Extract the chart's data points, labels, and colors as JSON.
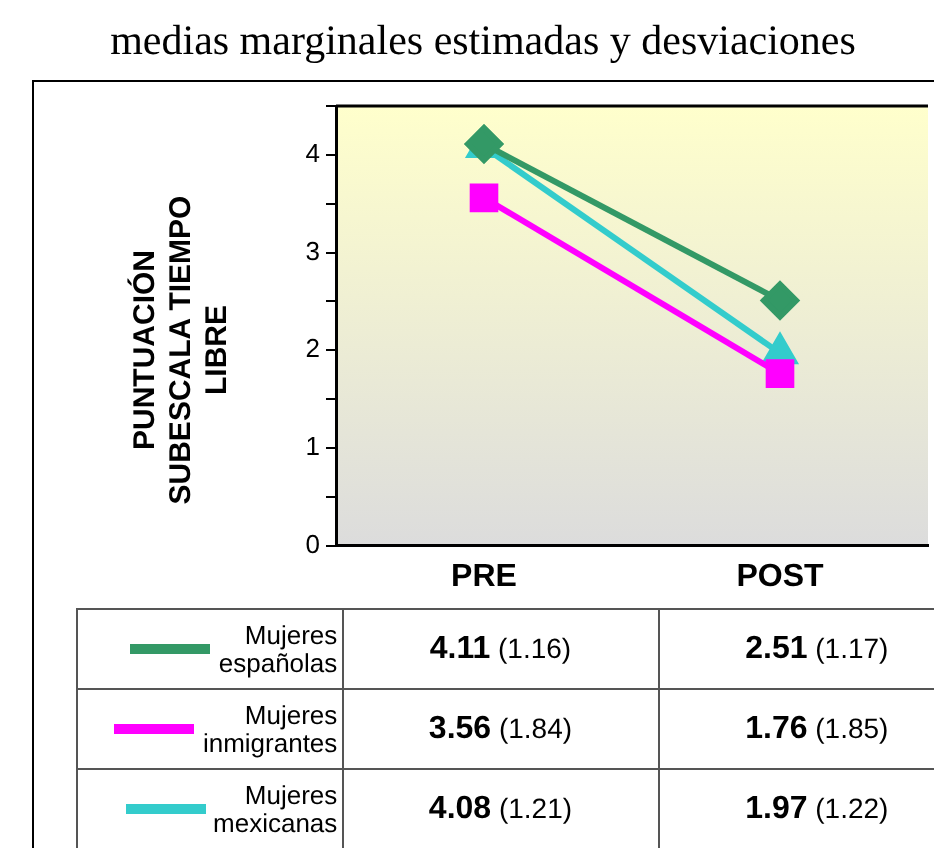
{
  "chart_data": {
    "type": "line",
    "title": "medias marginales estimadas y desviaciones",
    "ylabel": "PUNTUACIÓN SUBESCALA TIEMPO LIBRE",
    "categories": [
      "PRE",
      "POST"
    ],
    "series": [
      {
        "name": "Mujeres españolas",
        "color": "#339966",
        "values": [
          4.11,
          2.51
        ],
        "marker": "diamond",
        "value_labels": [
          "4.11 (1.16)",
          "2.51 (1.17)"
        ]
      },
      {
        "name": "Mujeres inmigrantes",
        "color": "#ff00ff",
        "values": [
          3.56,
          1.76
        ],
        "marker": "square",
        "value_labels": [
          "3.56 (1.84)",
          "1.76 (1.85)"
        ]
      },
      {
        "name": "Mujeres mexicanas",
        "color": "#33cccc",
        "values": [
          4.08,
          1.97
        ],
        "marker": "triangle",
        "value_labels": [
          "4.08 (1.21)",
          "1.97 (1.22)"
        ]
      }
    ],
    "ylim": [
      0,
      4.5
    ],
    "yticks": [
      0,
      {
        "value": 0.5,
        "label": null
      },
      1,
      {
        "value": 1.5,
        "label": null
      },
      2,
      {
        "value": 2.5,
        "label": null
      },
      3,
      {
        "value": 3.5,
        "label": null
      },
      4,
      {
        "value": 4.5,
        "label": null
      }
    ],
    "grid": false,
    "legend": "bottom",
    "line_style": "solid"
  }
}
